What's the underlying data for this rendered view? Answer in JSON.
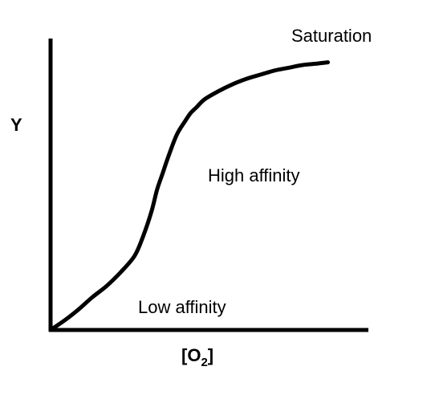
{
  "chart_data": {
    "type": "line",
    "xlabel": "[O",
    "xlabel_subscript": "2",
    "xlabel_close": "]",
    "ylabel": "Y",
    "grid": false,
    "axis_ticks": false,
    "series": [
      {
        "x": [
          0,
          0.05,
          0.1,
          0.15,
          0.2,
          0.25,
          0.3,
          0.33,
          0.36,
          0.38,
          0.4,
          0.42,
          0.45,
          0.48,
          0.5,
          0.52,
          0.55,
          0.6,
          0.65,
          0.7,
          0.75,
          0.8,
          0.85,
          0.9,
          0.95,
          0.99
        ],
        "y": [
          0.0,
          0.035,
          0.075,
          0.12,
          0.16,
          0.21,
          0.27,
          0.34,
          0.43,
          0.51,
          0.57,
          0.63,
          0.71,
          0.76,
          0.79,
          0.81,
          0.84,
          0.87,
          0.895,
          0.915,
          0.93,
          0.945,
          0.955,
          0.965,
          0.97,
          0.975
        ]
      }
    ],
    "annotations": [
      {
        "text": "Saturation"
      },
      {
        "text": "High affinity"
      },
      {
        "text": "Low affinity"
      }
    ],
    "colors": {
      "line": "#000000",
      "axis": "#000000"
    }
  }
}
